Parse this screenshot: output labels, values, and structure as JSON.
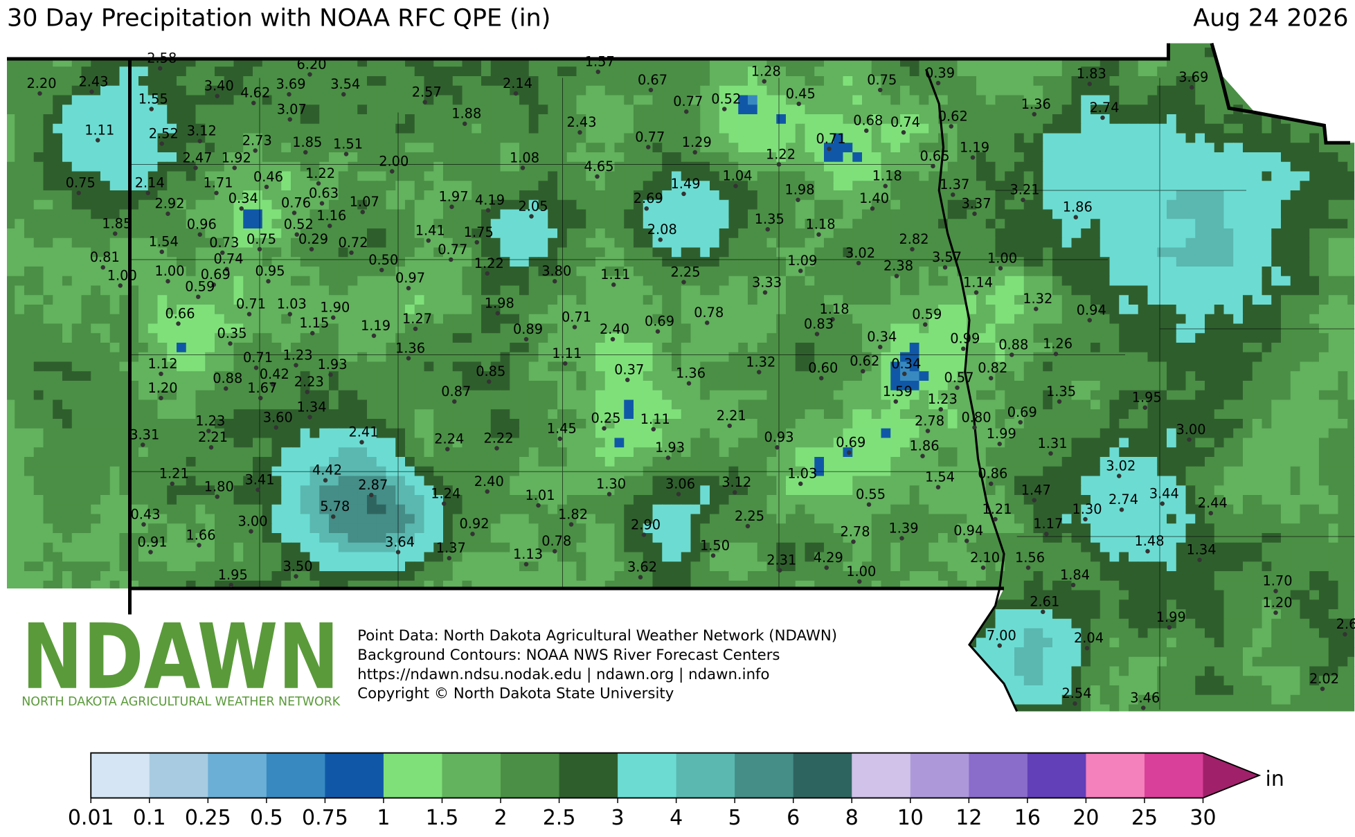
{
  "header": {
    "title": "30 Day Precipitation with NOAA RFC QPE (in)",
    "date": "Aug 24 2026"
  },
  "map": {
    "stations": [
      "2.58",
      "6.20",
      "1.57",
      "2.20",
      "2.43",
      "3.40",
      "4.62",
      "3.69",
      "3.54",
      "2.57",
      "2.14",
      "0.67",
      "1.28",
      "0.45",
      "0.75",
      "0.39",
      "1.83",
      "3.69",
      "1.55",
      "3.07",
      "1.88",
      "0.77",
      "0.52",
      "1.36",
      "2.74",
      "0.68",
      "0.74",
      "0.62",
      "1.11",
      "2.52",
      "3.12",
      "2.73",
      "1.85",
      "1.51",
      "2.43",
      "0.77",
      "1.29",
      "0.71",
      "1.22",
      "0.65",
      "1.19",
      "2.47",
      "1.92",
      "2.00",
      "1.08",
      "4.65",
      "0.75",
      "2.14",
      "1.71",
      "0.46",
      "1.22",
      "1.49",
      "1.04",
      "1.98",
      "1.18",
      "1.37",
      "3.21",
      "2.92",
      "0.34",
      "0.76",
      "0.63",
      "1.07",
      "1.97",
      "4.19",
      "2.05",
      "2.69",
      "1.40",
      "3.37",
      "1.86",
      "1.85",
      "0.96",
      "0.52",
      "1.16",
      "1.35",
      "1.18",
      "2.82",
      "1.54",
      "0.73",
      "0.75",
      "0.29",
      "0.72",
      "1.41",
      "1.75",
      "2.08",
      "0.81",
      "0.74",
      "0.77",
      "3.02",
      "3.57",
      "1.00",
      "1.00",
      "1.00",
      "0.69",
      "0.95",
      "0.50",
      "1.22",
      "1.09",
      "2.38",
      "0.59",
      "0.97",
      "3.80",
      "1.11",
      "2.25",
      "3.33",
      "1.14",
      "0.71",
      "1.03",
      "1.90",
      "1.98",
      "1.32",
      "0.94",
      "0.66",
      "0.89",
      "0.71",
      "0.78",
      "1.18",
      "0.59",
      "0.35",
      "1.15",
      "1.19",
      "1.27",
      "0.69",
      "2.40",
      "0.83",
      "0.34",
      "1.12",
      "0.71",
      "1.23",
      "1.93",
      "1.36",
      "1.11",
      "0.37",
      "1.36",
      "1.32",
      "0.99",
      "0.88",
      "1.26",
      "0.88",
      "0.42",
      "1.67",
      "2.23",
      "0.85",
      "0.60",
      "0.62",
      "0.34",
      "0.57",
      "0.82",
      "1.20",
      "0.87",
      "1.59",
      "1.23",
      "1.35",
      "1.34",
      "1.95",
      "3.60",
      "0.25",
      "1.11",
      "2.21",
      "2.78",
      "0.80",
      "0.69",
      "1.23",
      "3.31",
      "2.21",
      "2.41",
      "2.24",
      "2.22",
      "1.45",
      "0.93",
      "0.69",
      "1.99",
      "1.86",
      "1.31",
      "3.00",
      "1.93",
      "1.21",
      "4.42",
      "3.41",
      "1.80",
      "2.87",
      "2.40",
      "1.30",
      "3.06",
      "3.12",
      "1.03",
      "1.54",
      "0.86",
      "3.02",
      "3.44",
      "1.24",
      "1.01",
      "0.55",
      "1.47",
      "2.74",
      "2.44",
      "5.78",
      "0.43",
      "1.82",
      "2.25",
      "1.21",
      "1.30",
      "3.00",
      "0.92",
      "2.90",
      "2.78",
      "1.39",
      "0.94",
      "1.17",
      "0.91",
      "1.66",
      "3.64",
      "1.37",
      "0.78",
      "1.50",
      "1.48",
      "1.34",
      "1.13",
      "2.31",
      "4.29",
      "2.10",
      "1.56",
      "3.50",
      "3.62",
      "1.00",
      "1.84",
      "1.70",
      "1.95",
      "2.61",
      "1.20",
      "1.99",
      "2.6",
      "7.00",
      "2.04",
      "2.02",
      "2.54",
      "3.46"
    ]
  },
  "logo": {
    "name": "NDAWN",
    "tagline": "NORTH DAKOTA AGRICULTURAL WEATHER NETWORK"
  },
  "credits": [
    "Point Data: North Dakota Agricultural Weather Network (NDAWN)",
    "Background Contours: NOAA NWS River Forecast Centers",
    "https://ndawn.ndsu.nodak.edu | ndawn.org | ndawn.info",
    "Copyright © North Dakota State University"
  ],
  "colorbar": {
    "unit": "in",
    "ticks": [
      0.01,
      0.1,
      0.25,
      0.5,
      0.75,
      1,
      1.5,
      2,
      2.5,
      3,
      4,
      5,
      6,
      8,
      10,
      12,
      16,
      20,
      25,
      30
    ],
    "colors": [
      "#d6e5f3",
      "#a8cbe1",
      "#6baed6",
      "#3889c0",
      "#1058a7",
      "#7fe07a",
      "#63b25e",
      "#4a8f45",
      "#2f5e2d",
      "#6cdcd2",
      "#5ab8b0",
      "#458d87",
      "#2e645f",
      "#d0c2e8",
      "#ad99da",
      "#8a6ccb",
      "#6240b8",
      "#f480bc",
      "#d94099",
      "#a0206a"
    ]
  }
}
